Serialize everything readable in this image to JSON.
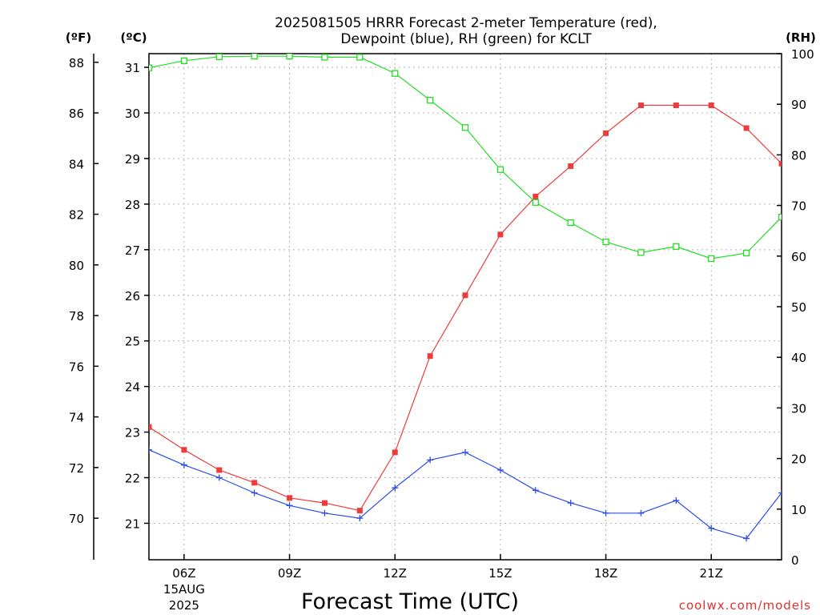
{
  "chart_data": {
    "type": "line",
    "title_line1": "2025081505 HRRR Forecast 2-meter Temperature (red),",
    "title_line2": "Dewpoint (blue), RH (green) for KCLT",
    "xlabel": "Forecast Time (UTC)",
    "credit": "coolwx.com/models",
    "units": {
      "fahrenheit": "(ºF)",
      "celsius": "(ºC)",
      "rh": "(RH)"
    },
    "x_hours": [
      5,
      6,
      7,
      8,
      9,
      10,
      11,
      12,
      13,
      14,
      15,
      16,
      17,
      18,
      19,
      20,
      21,
      22,
      23
    ],
    "x_range": [
      5,
      23
    ],
    "x_ticks": [
      {
        "hour": 6,
        "label": "06Z",
        "sub1": "15AUG",
        "sub2": "2025"
      },
      {
        "hour": 9,
        "label": "09Z"
      },
      {
        "hour": 12,
        "label": "12Z"
      },
      {
        "hour": 15,
        "label": "15Z"
      },
      {
        "hour": 18,
        "label": "18Z"
      },
      {
        "hour": 21,
        "label": "21Z"
      }
    ],
    "celsius_range": [
      20.2,
      31.3
    ],
    "celsius_ticks": [
      "21",
      "22",
      "23",
      "24",
      "25",
      "26",
      "27",
      "28",
      "29",
      "30",
      "31"
    ],
    "fahrenheit_ticks": [
      "70",
      "72",
      "74",
      "76",
      "78",
      "80",
      "82",
      "84",
      "86",
      "88"
    ],
    "rh_range": [
      0,
      100
    ],
    "rh_ticks": [
      "0",
      "10",
      "20",
      "30",
      "40",
      "50",
      "60",
      "70",
      "80",
      "90",
      "100"
    ],
    "grid": true,
    "series": [
      {
        "name": "Temperature",
        "axis": "fahrenheit",
        "color": "#ee3b3b",
        "marker": "filled-square",
        "values": [
          73.6,
          72.7,
          71.9,
          71.4,
          70.8,
          70.6,
          70.3,
          72.6,
          76.4,
          78.8,
          81.2,
          82.7,
          83.9,
          85.2,
          86.3,
          86.3,
          86.3,
          85.4,
          84.0
        ]
      },
      {
        "name": "Dewpoint",
        "axis": "fahrenheit",
        "color": "#2b4ce8",
        "marker": "plus",
        "values": [
          72.7,
          72.1,
          71.6,
          71.0,
          70.5,
          70.2,
          70.0,
          71.2,
          72.3,
          72.6,
          71.9,
          71.1,
          70.6,
          70.2,
          70.2,
          70.7,
          69.6,
          69.2,
          71.0
        ]
      },
      {
        "name": "RH",
        "axis": "rh",
        "color": "#22dd22",
        "marker": "open-square",
        "values": [
          97.2,
          98.6,
          99.4,
          99.5,
          99.5,
          99.3,
          99.3,
          96.1,
          90.8,
          85.4,
          77.1,
          70.6,
          66.6,
          62.8,
          60.7,
          61.9,
          59.5,
          60.6,
          67.7
        ]
      }
    ]
  }
}
